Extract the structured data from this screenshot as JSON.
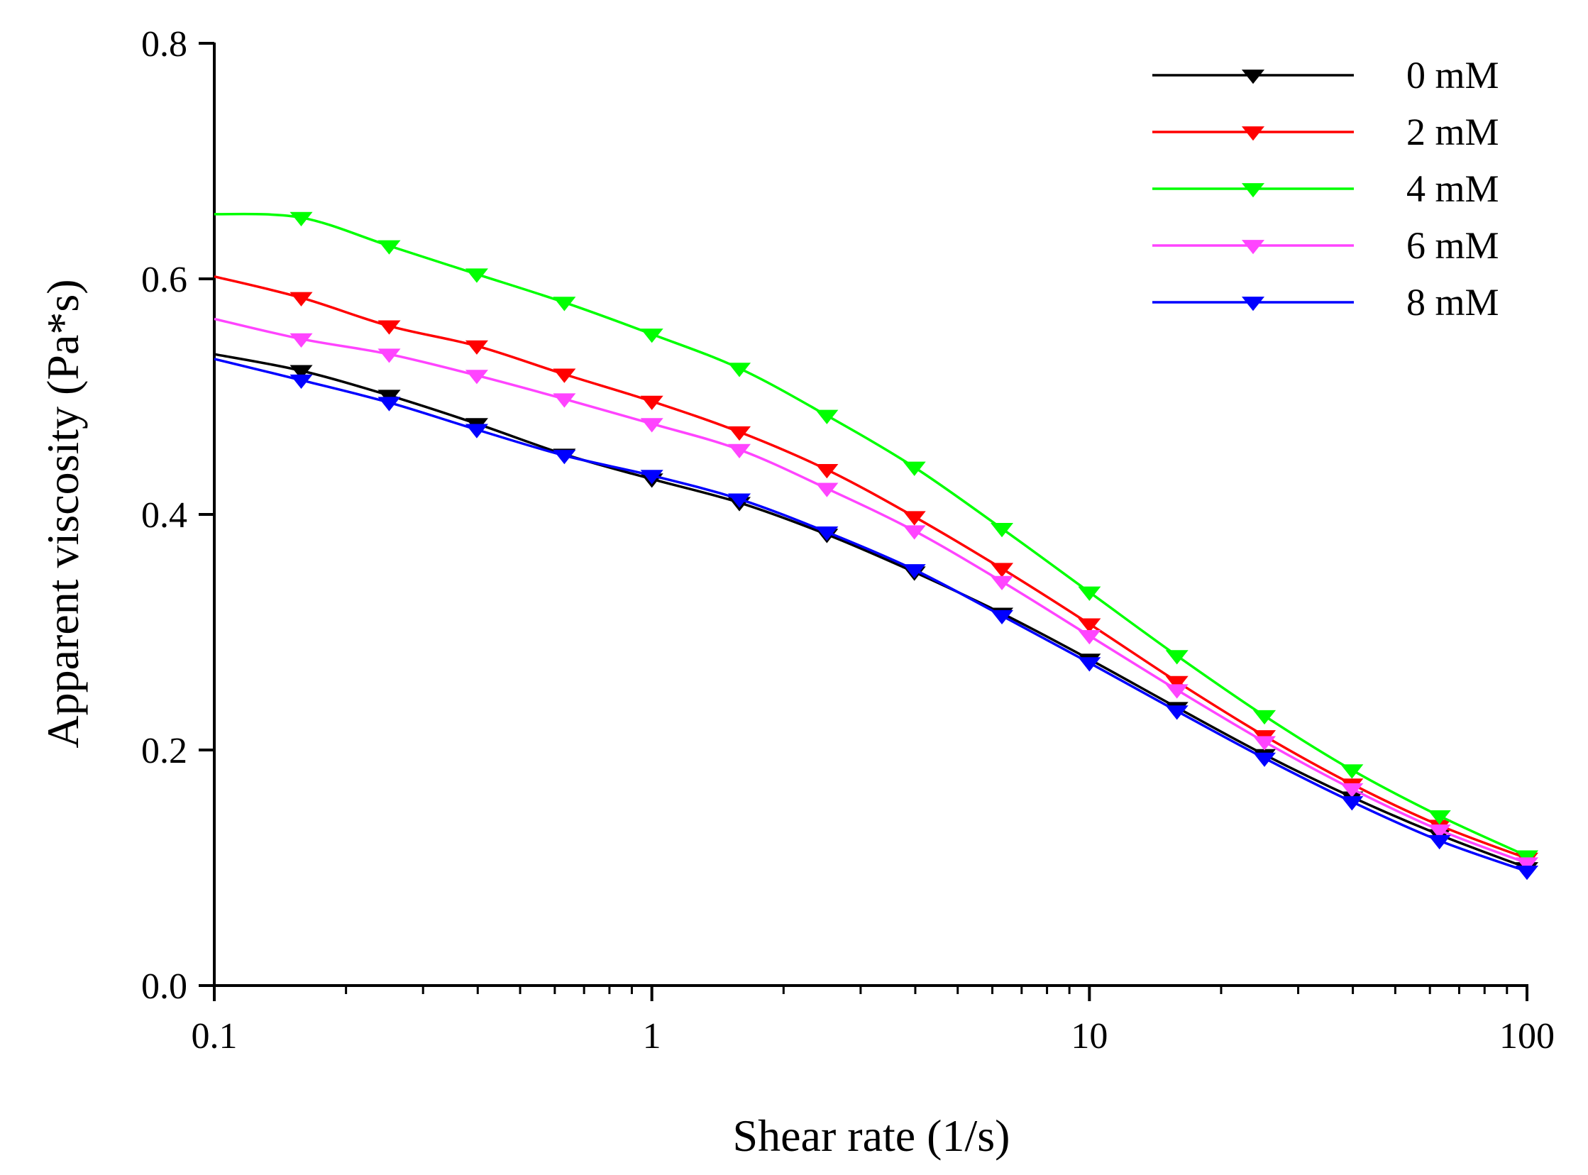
{
  "chart_data": {
    "type": "line",
    "title": "",
    "xlabel": "Shear rate (1/s)",
    "ylabel": "Apparent viscosity (Pa*s)",
    "xscale": "log",
    "xlim": [
      0.1,
      100
    ],
    "ylim": [
      0.0,
      0.8
    ],
    "xticks": [
      {
        "value": 0.1,
        "label": "0.1"
      },
      {
        "value": 1,
        "label": "1"
      },
      {
        "value": 10,
        "label": "10"
      },
      {
        "value": 100,
        "label": "100"
      }
    ],
    "yticks": [
      {
        "value": 0.0,
        "label": "0.0"
      },
      {
        "value": 0.2,
        "label": "0.2"
      },
      {
        "value": 0.4,
        "label": "0.4"
      },
      {
        "value": 0.6,
        "label": "0.6"
      },
      {
        "value": 0.8,
        "label": "0.8"
      }
    ],
    "grid": false,
    "legend_position": "top-right",
    "marker": "triangle-down",
    "curve_start": [
      {
        "x": 0.1,
        "series": "0 mM",
        "y": 0.536
      },
      {
        "x": 0.1,
        "series": "2 mM",
        "y": 0.602
      },
      {
        "x": 0.1,
        "series": "4 mM",
        "y": 0.655
      },
      {
        "x": 0.1,
        "series": "6 mM",
        "y": 0.566
      },
      {
        "x": 0.1,
        "series": "8 mM",
        "y": 0.532
      }
    ],
    "x": [
      0.158,
      0.251,
      0.398,
      0.631,
      1.0,
      1.585,
      2.512,
      3.981,
      6.31,
      10.0,
      15.85,
      25.12,
      39.81,
      63.1,
      100.0
    ],
    "series": [
      {
        "name": "0 mM",
        "color": "#000000",
        "values": [
          0.522,
          0.501,
          0.477,
          0.451,
          0.43,
          0.41,
          0.383,
          0.351,
          0.316,
          0.277,
          0.236,
          0.196,
          0.16,
          0.128,
          0.1
        ]
      },
      {
        "name": "2 mM",
        "color": "#ff0000",
        "values": [
          0.584,
          0.56,
          0.543,
          0.519,
          0.496,
          0.47,
          0.438,
          0.398,
          0.354,
          0.307,
          0.258,
          0.212,
          0.171,
          0.136,
          0.108
        ]
      },
      {
        "name": "4 mM",
        "color": "#00ff00",
        "values": [
          0.652,
          0.628,
          0.604,
          0.58,
          0.553,
          0.524,
          0.484,
          0.44,
          0.388,
          0.334,
          0.28,
          0.229,
          0.183,
          0.144,
          0.11
        ]
      },
      {
        "name": "6 mM",
        "color": "#ff44ff",
        "values": [
          0.549,
          0.536,
          0.518,
          0.498,
          0.477,
          0.455,
          0.422,
          0.386,
          0.343,
          0.297,
          0.251,
          0.207,
          0.167,
          0.132,
          0.104
        ]
      },
      {
        "name": "8 mM",
        "color": "#0000ff",
        "values": [
          0.514,
          0.495,
          0.472,
          0.45,
          0.433,
          0.413,
          0.385,
          0.353,
          0.314,
          0.274,
          0.233,
          0.193,
          0.156,
          0.123,
          0.097
        ]
      }
    ]
  }
}
